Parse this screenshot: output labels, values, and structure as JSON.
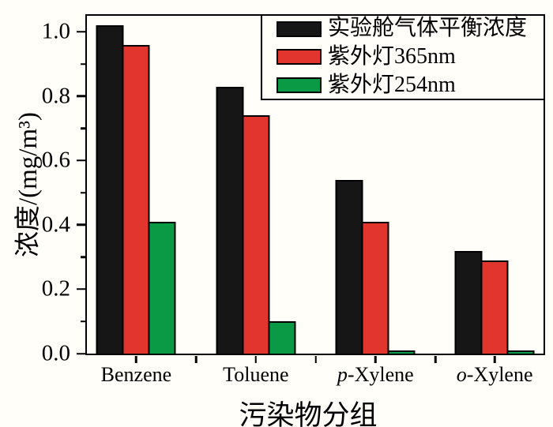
{
  "figure": {
    "background": "#fffef9",
    "axis_color": "#000000"
  },
  "chart_data": {
    "type": "bar",
    "title": "",
    "xlabel": "污染物分组",
    "ylabel": "浓度/(mg/m³)",
    "categories": [
      "Benzene",
      "Toluene",
      "p-Xylene",
      "o-Xylene"
    ],
    "categories_italic_prefix": [
      "",
      "",
      "p",
      "o"
    ],
    "categories_rest": [
      "Benzene",
      "Toluene",
      "-Xylene",
      "-Xylene"
    ],
    "series": [
      {
        "name": "实验舱气体平衡浓度",
        "color": "#161616",
        "values": [
          1.02,
          0.83,
          0.54,
          0.32
        ]
      },
      {
        "name": "紫外灯365nm",
        "color": "#e2352e",
        "values": [
          0.96,
          0.74,
          0.41,
          0.29
        ]
      },
      {
        "name": "紫外灯254nm",
        "color": "#0a9a46",
        "values": [
          0.41,
          0.1,
          0.01,
          0.01
        ]
      }
    ],
    "ylim": [
      0,
      1.05
    ],
    "ytick_labels": [
      "0.0",
      "0.2",
      "0.4",
      "0.6",
      "0.8",
      "1.0"
    ],
    "yticks_major_values": [
      0.0,
      0.2,
      0.4,
      0.6,
      0.8,
      1.0
    ],
    "yticks_minor_values": [
      0.1,
      0.3,
      0.5,
      0.7,
      0.9
    ],
    "group_centers_pct": [
      10.8,
      37.0,
      63.2,
      89.3
    ],
    "boundary_ticks_pct": [
      23.9,
      50.1,
      76.3
    ],
    "legend_position": "top-right",
    "grid": false
  }
}
